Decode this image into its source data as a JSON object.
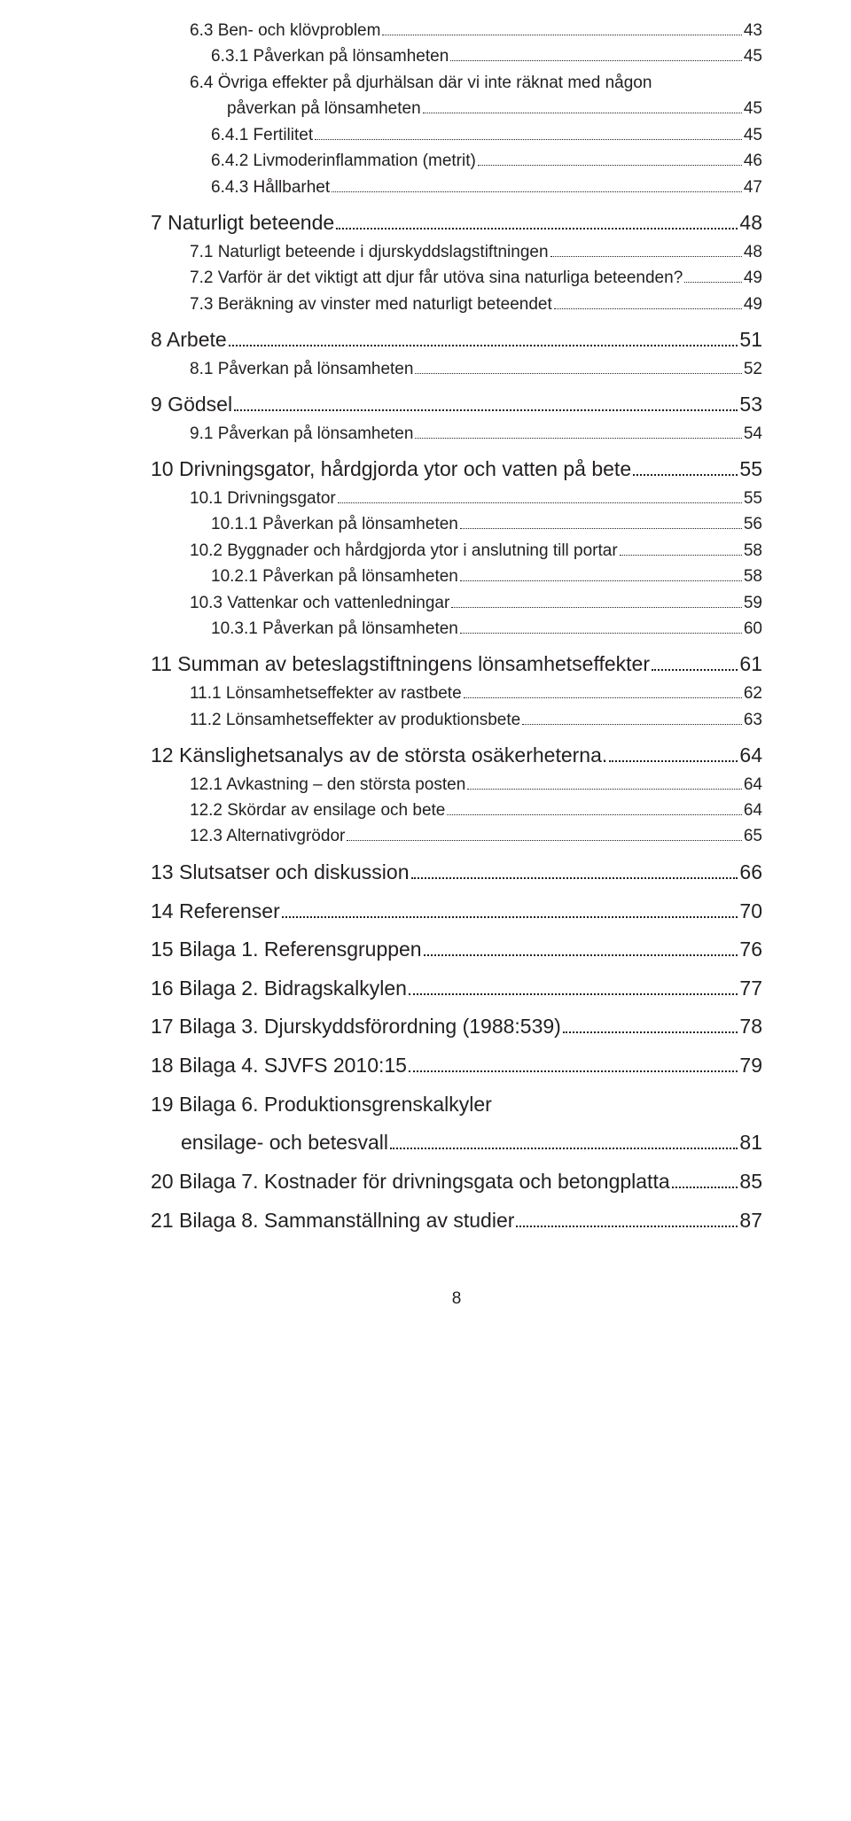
{
  "entries": [
    {
      "level": 2,
      "indent": 1,
      "label": "6.3  Ben- och klövproblem",
      "page": "43"
    },
    {
      "level": 2,
      "indent": 2,
      "label": "6.3.1  Påverkan på lönsamheten",
      "page": "45"
    },
    {
      "level": 1,
      "indent": 1,
      "label": "6.4  Övriga effekter på djurhälsan där vi inte räknat med någon",
      "label2": "påverkan på lönsamheten",
      "page": "45",
      "wrap": true,
      "wrapIndent": "42px"
    },
    {
      "level": 2,
      "indent": 2,
      "label": "6.4.1  Fertilitet",
      "page": "45"
    },
    {
      "level": 2,
      "indent": 2,
      "label": "6.4.2  Livmoderinflammation (metrit)",
      "page": "46"
    },
    {
      "level": 2,
      "indent": 2,
      "label": "6.4.3  Hållbarhet",
      "page": "47"
    },
    {
      "level": 0,
      "indent": 0,
      "label": "7   Naturligt beteende",
      "page": "48"
    },
    {
      "level": 1,
      "indent": 1,
      "label": "7.1  Naturligt beteende i djurskyddslagstiftningen",
      "page": "48"
    },
    {
      "level": 1,
      "indent": 1,
      "label": "7.2  Varför är det viktigt att djur får utöva sina naturliga beteenden?",
      "page": "49"
    },
    {
      "level": 1,
      "indent": 1,
      "label": "7.3  Beräkning av vinster med naturligt beteendet",
      "page": "49"
    },
    {
      "level": 0,
      "indent": 0,
      "label": "8   Arbete",
      "page": "51"
    },
    {
      "level": 1,
      "indent": 1,
      "label": "8.1  Påverkan på lönsamheten",
      "page": "52"
    },
    {
      "level": 0,
      "indent": 0,
      "label": "9   Gödsel",
      "page": "53"
    },
    {
      "level": 1,
      "indent": 1,
      "label": "9.1  Påverkan på lönsamheten",
      "page": "54"
    },
    {
      "level": 0,
      "indent": 0,
      "label": "10 Drivningsgator, hårdgjorda ytor och vatten på bete",
      "page": "55"
    },
    {
      "level": 1,
      "indent": 1,
      "label": "10.1 Drivningsgator",
      "page": "55"
    },
    {
      "level": 2,
      "indent": 2,
      "label": "10.1.1 Påverkan på lönsamheten",
      "page": "56"
    },
    {
      "level": 1,
      "indent": 1,
      "label": "10.2 Byggnader och hårdgjorda ytor i anslutning till portar",
      "page": "58"
    },
    {
      "level": 2,
      "indent": 2,
      "label": "10.2.1 Påverkan på lönsamheten",
      "page": "58"
    },
    {
      "level": 1,
      "indent": 1,
      "label": "10.3 Vattenkar och vattenledningar",
      "page": "59"
    },
    {
      "level": 2,
      "indent": 2,
      "label": "10.3.1 Påverkan på lönsamheten",
      "page": "60"
    },
    {
      "level": 0,
      "indent": 0,
      "label": "11 Summan av beteslagstiftningens lönsamhetseffekter",
      "page": "61"
    },
    {
      "level": 1,
      "indent": 1,
      "label": "11.1 Lönsamhetseffekter av rastbete",
      "page": "62"
    },
    {
      "level": 1,
      "indent": 1,
      "label": "11.2 Lönsamhetseffekter av produktionsbete",
      "page": "63"
    },
    {
      "level": 0,
      "indent": 0,
      "label": "12 Känslighetsanalys av de största osäkerheterna.",
      "page": "64"
    },
    {
      "level": 1,
      "indent": 1,
      "label": "12.1 Avkastning – den största posten",
      "page": "64"
    },
    {
      "level": 1,
      "indent": 1,
      "label": "12.2 Skördar av ensilage och bete",
      "page": "64"
    },
    {
      "level": 1,
      "indent": 1,
      "label": "12.3 Alternativgrödor",
      "page": "65"
    },
    {
      "level": 0,
      "indent": 0,
      "label": "13 Slutsatser och diskussion",
      "page": "66"
    },
    {
      "level": 0,
      "indent": 0,
      "label": "14 Referenser",
      "page": "70"
    },
    {
      "level": 0,
      "indent": 0,
      "label": "15 Bilaga 1. Referensgruppen",
      "page": "76"
    },
    {
      "level": 0,
      "indent": 0,
      "label": "16 Bilaga 2. Bidragskalkylen",
      "page": "77"
    },
    {
      "level": 0,
      "indent": 0,
      "label": "17 Bilaga 3. Djurskyddsförordning (1988:539)",
      "page": "78"
    },
    {
      "level": 0,
      "indent": 0,
      "label": "18 Bilaga 4. SJVFS 2010:15",
      "page": "79"
    },
    {
      "level": 0,
      "indent": 0,
      "label": "19 Bilaga 6. Produktionsgrenskalkyler",
      "label2": "ensilage- och betesvall",
      "page": "81",
      "wrap": true,
      "wrapIndent": "34px"
    },
    {
      "level": 0,
      "indent": 0,
      "label": "20 Bilaga 7. Kostnader för drivningsgata och betongplatta",
      "page": "85"
    },
    {
      "level": 0,
      "indent": 0,
      "label": "21 Bilaga 8. Sammanställning av studier",
      "page": "87"
    }
  ],
  "pageNumber": "8"
}
